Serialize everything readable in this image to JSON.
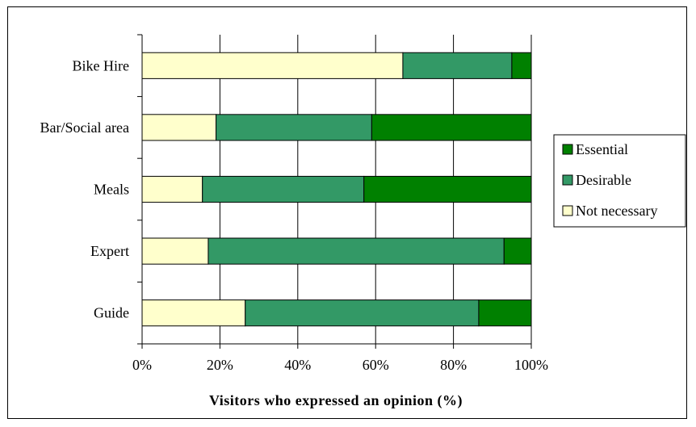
{
  "chart_data": {
    "type": "bar",
    "orientation": "horizontal",
    "stacked": true,
    "percent_stacked": true,
    "categories": [
      "Bike Hire",
      "Bar/Social area",
      "Meals",
      "Expert",
      "Guide"
    ],
    "series": [
      {
        "name": "Not necessary",
        "values": [
          67,
          19,
          15.5,
          17,
          26.5
        ],
        "color": "#ffffcc"
      },
      {
        "name": "Desirable",
        "values": [
          28,
          40,
          41.5,
          76,
          60
        ],
        "color": "#339966"
      },
      {
        "name": "Essential",
        "values": [
          5,
          41,
          43,
          7,
          13.5
        ],
        "color": "#008000"
      }
    ],
    "xlim": [
      0,
      100
    ],
    "xticks": [
      "0%",
      "20%",
      "40%",
      "60%",
      "80%",
      "100%"
    ],
    "xlabel": "Visitors who expressed an opinion (%)",
    "ylabel": "",
    "grid": true,
    "legend_position": "right",
    "legend_order": [
      "Essential",
      "Desirable",
      "Not necessary"
    ]
  }
}
